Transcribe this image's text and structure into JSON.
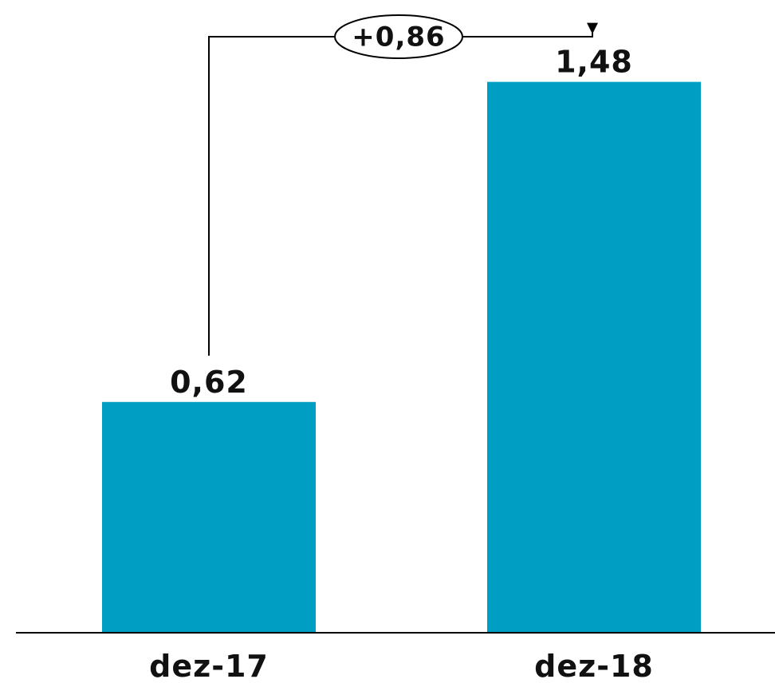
{
  "chart_data": {
    "type": "bar",
    "categories": [
      "dez-17",
      "dez-18"
    ],
    "values": [
      0.62,
      1.48
    ],
    "value_labels": [
      "0,62",
      "1,48"
    ],
    "ylim": [
      0,
      1.7
    ],
    "grid": false,
    "legend": "none",
    "bar_color": "#009ec3",
    "annotation": {
      "type": "difference-arrow",
      "from": "dez-17",
      "to": "dez-18",
      "label": "+0,86"
    }
  }
}
